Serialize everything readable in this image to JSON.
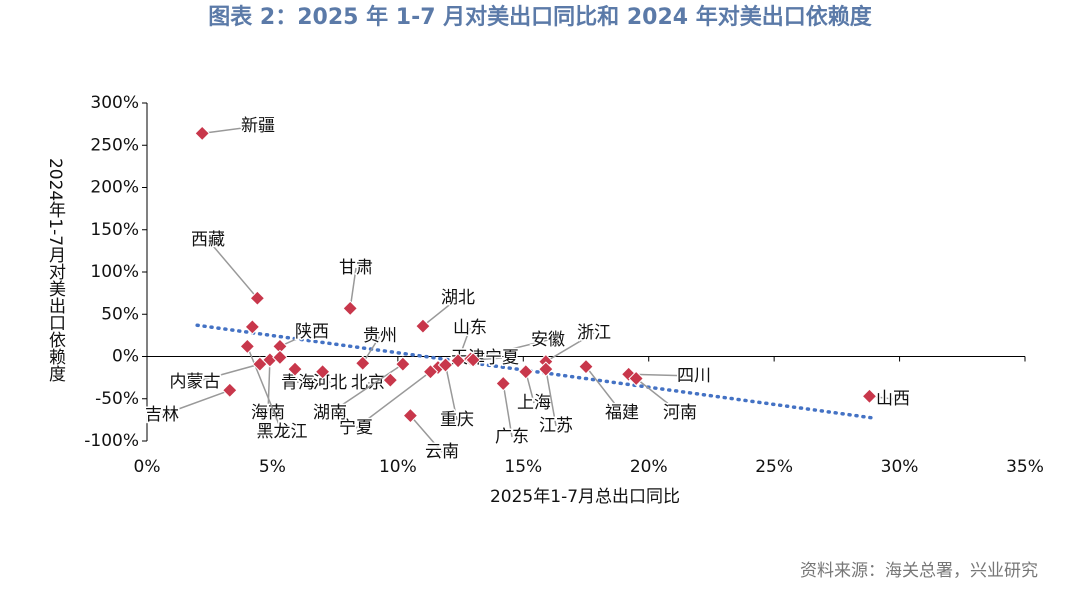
{
  "chart_data": {
    "type": "scatter",
    "title": "图表 2：2025 年 1-7 月对美出口同比和 2024 年对美出口依赖度",
    "source": "资料来源：海关总署，兴业研究",
    "xlabel": "2025年1-7月总出口同比",
    "ylabel": "2024年1-7月对美出口依赖度",
    "xlim": [
      0,
      35
    ],
    "ylim": [
      -100,
      300
    ],
    "xticks": [
      {
        "value": 0,
        "label": "0%"
      },
      {
        "value": 5,
        "label": "5%"
      },
      {
        "value": 10,
        "label": "10%"
      },
      {
        "value": 15,
        "label": "15%"
      },
      {
        "value": 20,
        "label": "20%"
      },
      {
        "value": 25,
        "label": "25%"
      },
      {
        "value": 30,
        "label": "30%"
      },
      {
        "value": 35,
        "label": "35%"
      }
    ],
    "yticks": [
      {
        "value": -100,
        "label": "-100%"
      },
      {
        "value": -50,
        "label": "-50%"
      },
      {
        "value": 0,
        "label": "0%"
      },
      {
        "value": 50,
        "label": "50%"
      },
      {
        "value": 100,
        "label": "100%"
      },
      {
        "value": 150,
        "label": "150%"
      },
      {
        "value": 200,
        "label": "200%"
      },
      {
        "value": 250,
        "label": "250%"
      },
      {
        "value": 300,
        "label": "300%"
      }
    ],
    "series": [
      {
        "color": "#c8374b",
        "labels": [
          "新疆",
          "西藏",
          "甘肃",
          "湖北",
          "山东",
          "陕西",
          "贵州",
          "安徽",
          "浙江",
          "天津",
          "宁夏",
          "内蒙古",
          "青海",
          "北京",
          "河北",
          "吉林",
          "海南",
          "湖南",
          "黑龙江",
          "宁夏",
          "重庆",
          "云南",
          "广东",
          "上海",
          "江苏",
          "福建",
          "四川",
          "河南",
          "山西",
          null,
          null
        ],
        "x": [
          2.2,
          4.4,
          8.1,
          11.0,
          12.4,
          5.3,
          8.6,
          12.9,
          15.9,
          11.6,
          13.0,
          4.5,
          5.9,
          9.7,
          7.0,
          3.3,
          4.9,
          10.2,
          4.0,
          11.3,
          11.9,
          10.5,
          14.2,
          15.1,
          15.9,
          17.5,
          19.2,
          19.5,
          28.8,
          4.2,
          5.3
        ],
        "values": [
          264,
          69,
          57,
          36,
          -5,
          12,
          -8,
          -3,
          -6,
          -13,
          -4,
          -9,
          -15,
          -28,
          -18,
          -40,
          -4,
          -9,
          12,
          -18,
          -10,
          -70,
          -32,
          -18,
          -15,
          -12,
          -21,
          -26,
          -47,
          35,
          -1
        ]
      }
    ],
    "trendline": {
      "x": [
        2,
        29
      ],
      "values": [
        37,
        -73
      ],
      "color": "#4472c4",
      "style": "dotted"
    }
  }
}
